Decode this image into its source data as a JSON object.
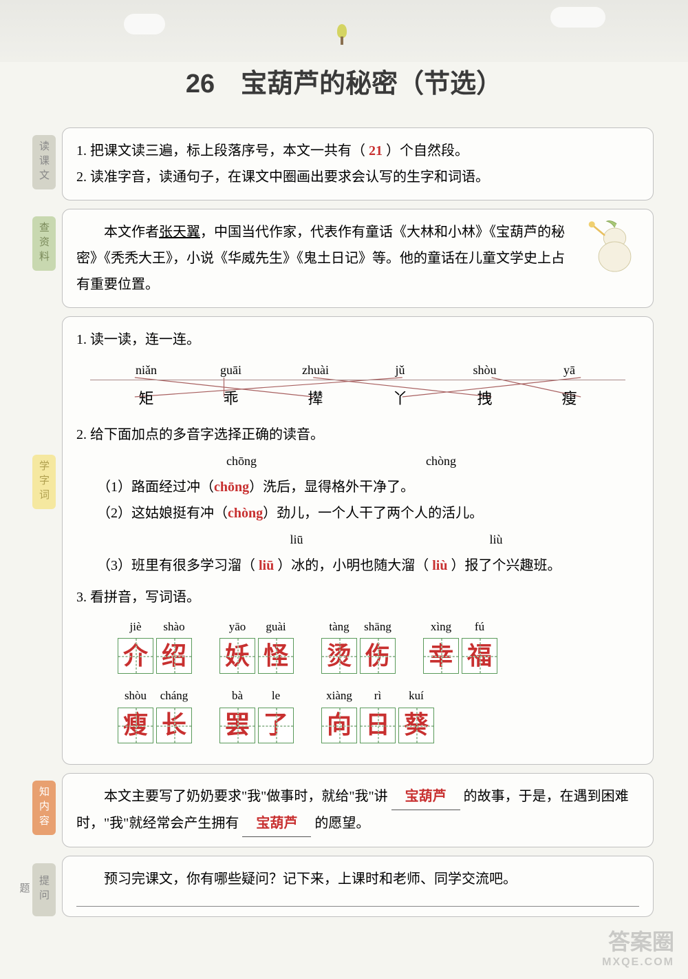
{
  "title": "26　宝葫芦的秘密（节选）",
  "sections": {
    "read": {
      "label": "读课文",
      "line1_pre": "1. 把课文读三遍，标上段落序号，本文一共有（",
      "line1_answer": " 21 ",
      "line1_post": "）个自然段。",
      "line2": "2. 读准字音，读通句子，在课文中圈画出要求会认写的生字和词语。"
    },
    "author": {
      "label": "查资料",
      "pre": "　　本文作者",
      "name": "张天翼",
      "post1": "，中国当代作家，代表作有童话《大林和小林》《宝葫芦的秘密》《秃秃大王》，小说《华威先生》《鬼土日记》等。他的童话在儿童文学史上占有重要位置。"
    },
    "vocab": {
      "label": "学字词",
      "ex1_title": "1. 读一读，连一连。",
      "pinyin": [
        "niǎn",
        "guāi",
        "zhuài",
        "jǔ",
        "shòu",
        "yā"
      ],
      "hanzi": [
        "矩",
        "乖",
        "撵",
        "丫",
        "拽",
        "瘦"
      ],
      "connections": [
        [
          0,
          2
        ],
        [
          1,
          1
        ],
        [
          2,
          4
        ],
        [
          3,
          0
        ],
        [
          4,
          5
        ],
        [
          5,
          3
        ]
      ],
      "ex2_title": "2. 给下面加点的多音字选择正确的读音。",
      "ex2_opts1": [
        "chōng",
        "chòng"
      ],
      "ex2_opts2": [
        "liū",
        "liù"
      ],
      "sent1_pre": "（1）路面经过冲（",
      "sent1_ans": "chōng",
      "sent1_post": "）洗后，显得格外干净了。",
      "sent2_pre": "（2）这姑娘挺有冲（",
      "sent2_ans": "chòng",
      "sent2_post": "）劲儿，一个人干了两个人的活儿。",
      "sent3_pre": "（3）班里有很多学习溜（",
      "sent3_ans1": " liū ",
      "sent3_mid": "）冰的，小明也随大溜（",
      "sent3_ans2": " liù ",
      "sent3_post": "）报了个兴趣班。",
      "ex3_title": "3. 看拼音，写词语。",
      "row1": [
        {
          "pinyin": [
            "jiè",
            "shào"
          ],
          "chars": [
            "介",
            "绍"
          ]
        },
        {
          "pinyin": [
            "yāo",
            "guài"
          ],
          "chars": [
            "妖",
            "怪"
          ]
        },
        {
          "pinyin": [
            "tàng",
            "shāng"
          ],
          "chars": [
            "烫",
            "伤"
          ]
        },
        {
          "pinyin": [
            "xìng",
            "fú"
          ],
          "chars": [
            "幸",
            "福"
          ]
        }
      ],
      "row2": [
        {
          "pinyin": [
            "shòu",
            "cháng"
          ],
          "chars": [
            "瘦",
            "长"
          ]
        },
        {
          "pinyin": [
            "bà",
            "le"
          ],
          "chars": [
            "罢",
            "了"
          ]
        },
        {
          "pinyin": [
            "xiàng",
            "rì",
            "kuí"
          ],
          "chars": [
            "向",
            "日",
            "葵"
          ]
        }
      ]
    },
    "summary": {
      "label": "知内容",
      "pre": "　　本文主要写了奶奶要求\"我\"做事时，就给\"我\"讲 ",
      "ans1": "宝葫芦",
      "mid": " 的故事，于是，在遇到困难时，\"我\"就经常会产生拥有 ",
      "ans2": "宝葫芦",
      "post": " 的愿望。"
    },
    "question": {
      "label": "提问题",
      "text": "　　预习完课文，你有哪些疑问？记下来，上课时和老师、同学交流吧。"
    }
  },
  "watermark": {
    "main": "答案圈",
    "sub": "MXQE.COM"
  },
  "colors": {
    "red": "#c83030",
    "box_border": "#5a9a5a"
  }
}
